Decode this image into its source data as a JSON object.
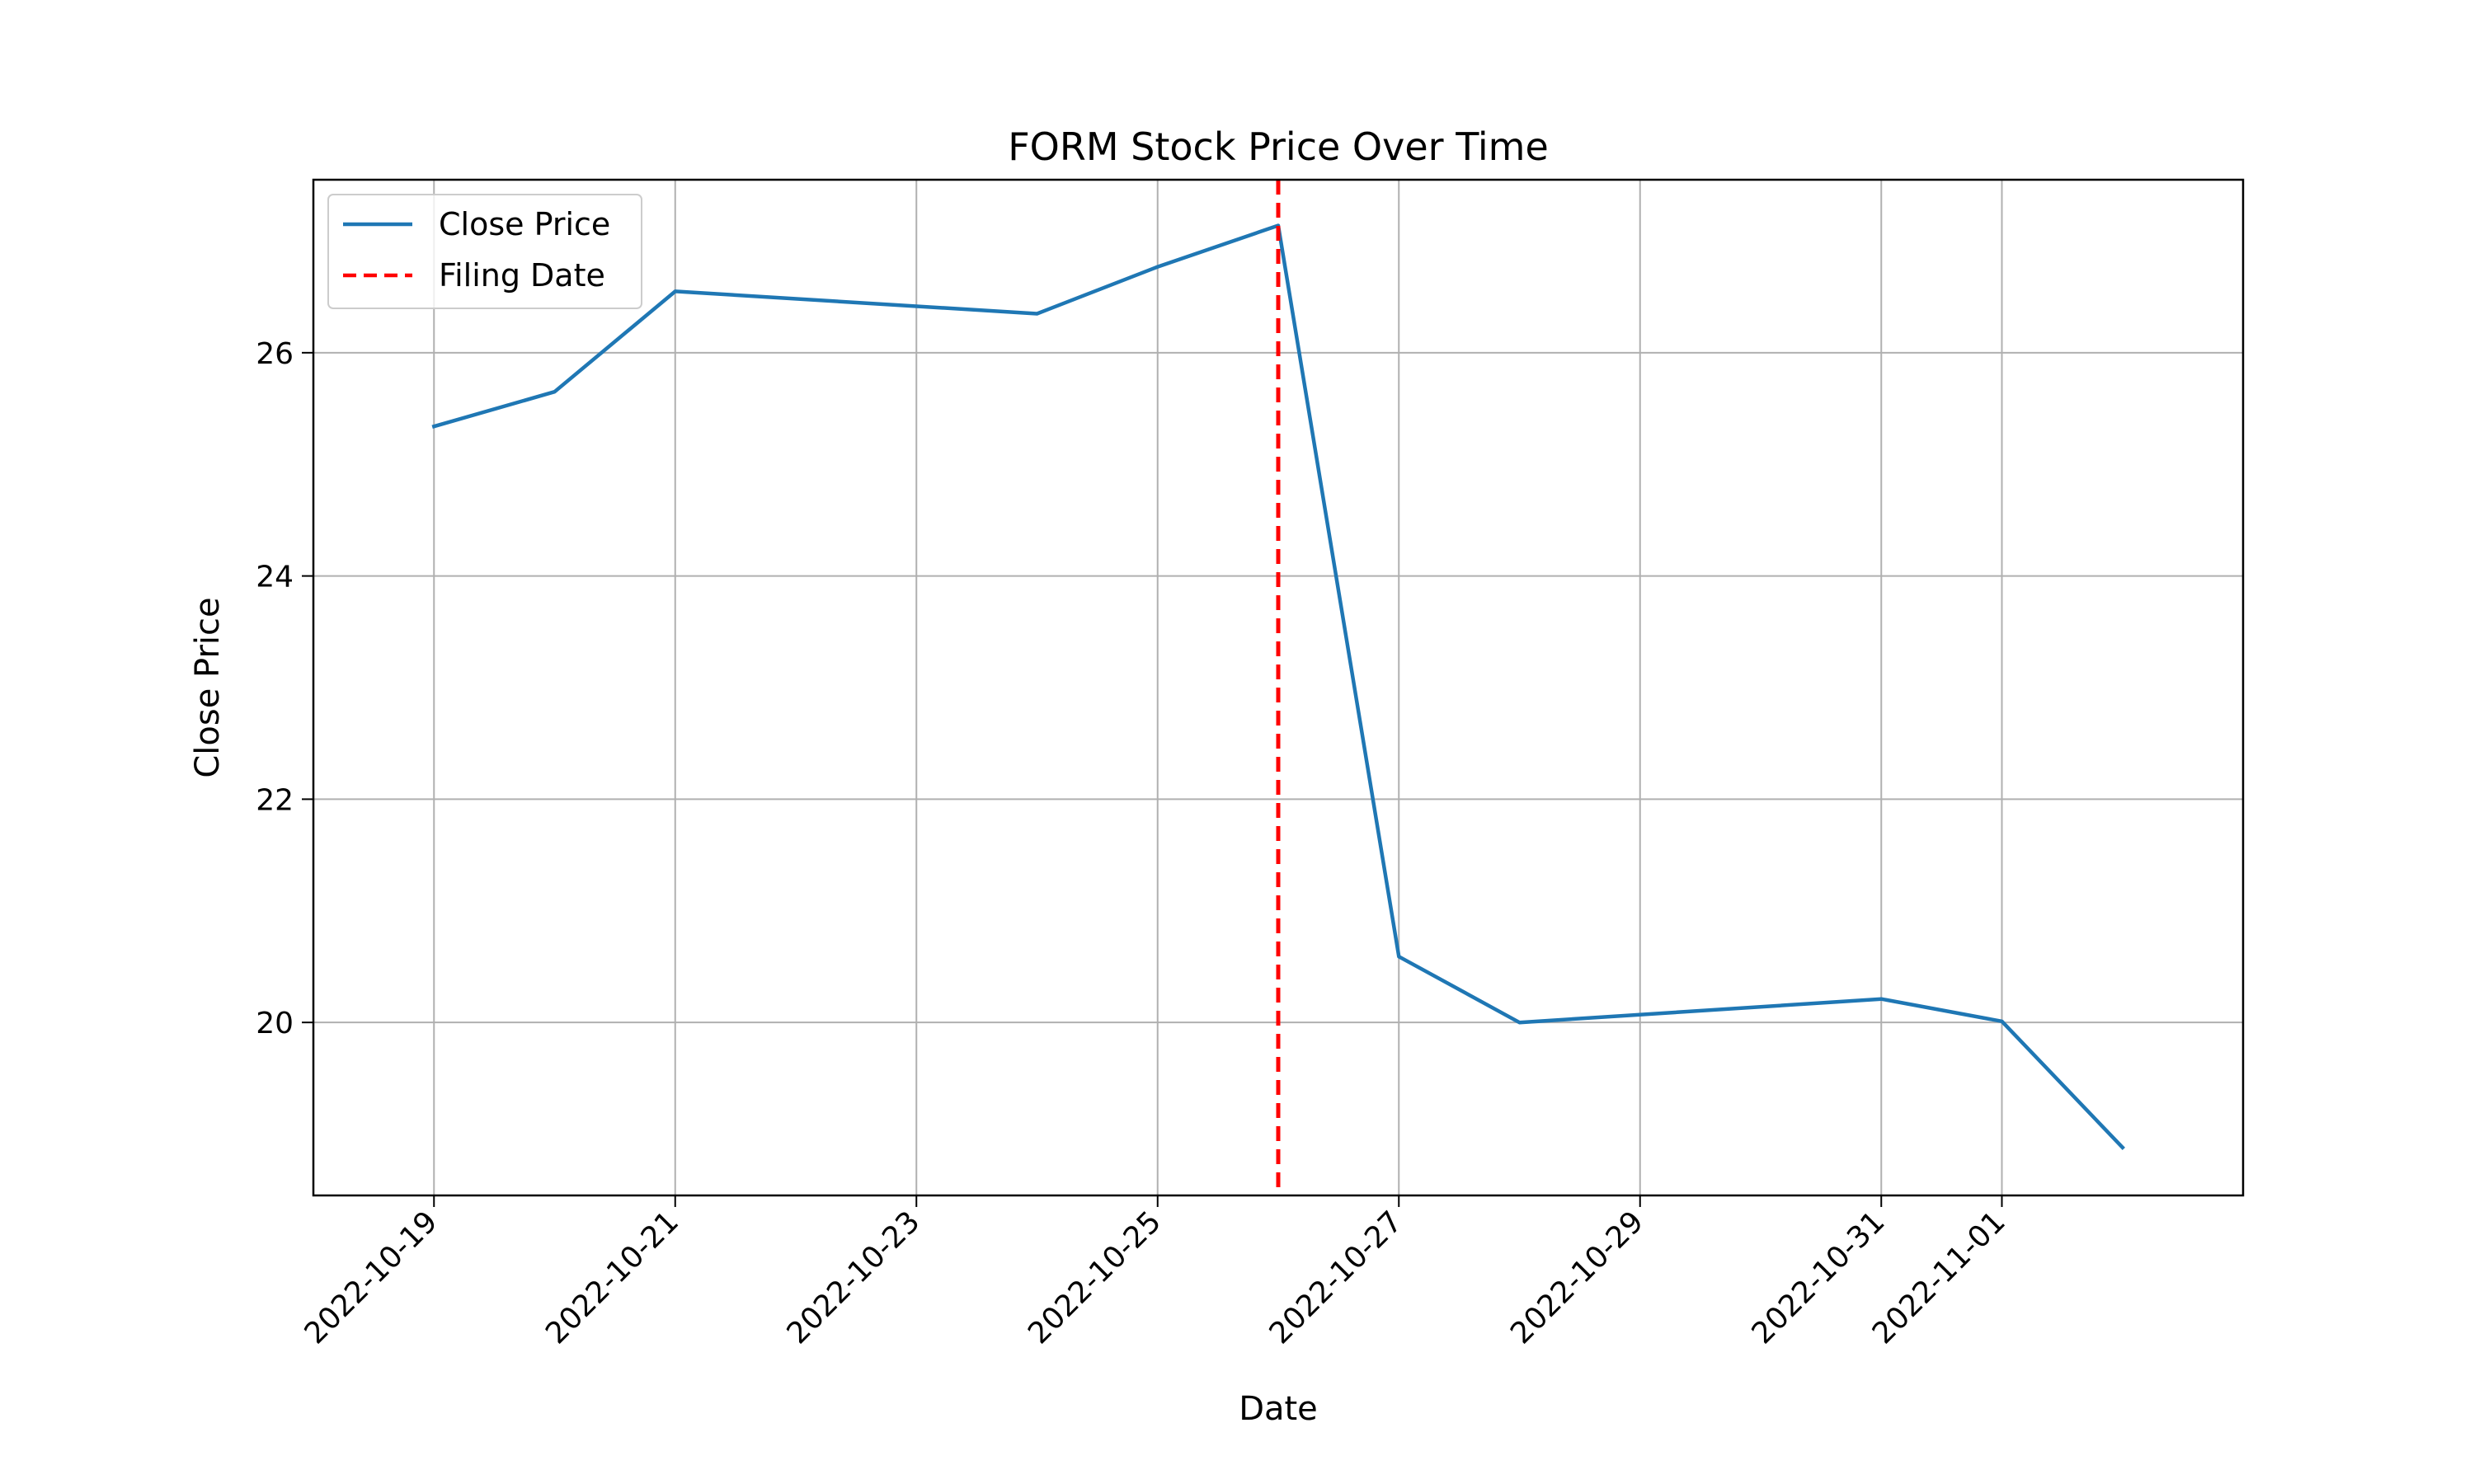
{
  "chart_data": {
    "type": "line",
    "title": "FORM Stock Price Over Time",
    "xlabel": "Date",
    "ylabel": "Close Price",
    "x_ticks": [
      "2022-10-19",
      "2022-10-21",
      "2022-10-23",
      "2022-10-25",
      "2022-10-27",
      "2022-10-29",
      "2022-10-31",
      "2022-11-01"
    ],
    "y_ticks": [
      20,
      22,
      24,
      26
    ],
    "ylim": [
      18.45,
      27.55
    ],
    "xlim": [
      "2022-10-18",
      "2022-11-03"
    ],
    "grid": true,
    "legend_position": "top-left",
    "series": [
      {
        "name": "Close Price",
        "color": "#1f77b4",
        "style": "solid",
        "points": [
          {
            "x": "2022-10-19",
            "y": 25.34
          },
          {
            "x": "2022-10-20",
            "y": 25.65
          },
          {
            "x": "2022-10-21",
            "y": 26.55
          },
          {
            "x": "2022-10-24",
            "y": 26.35
          },
          {
            "x": "2022-10-25",
            "y": 26.77
          },
          {
            "x": "2022-10-26",
            "y": 27.14
          },
          {
            "x": "2022-10-27",
            "y": 20.59
          },
          {
            "x": "2022-10-28",
            "y": 20.0
          },
          {
            "x": "2022-10-31",
            "y": 20.21
          },
          {
            "x": "2022-11-01",
            "y": 20.01
          },
          {
            "x": "2022-11-02",
            "y": 18.88
          }
        ]
      }
    ],
    "vlines": [
      {
        "name": "Filing Date",
        "x": "2022-10-26",
        "color": "#ff0000",
        "style": "dashed"
      }
    ]
  }
}
